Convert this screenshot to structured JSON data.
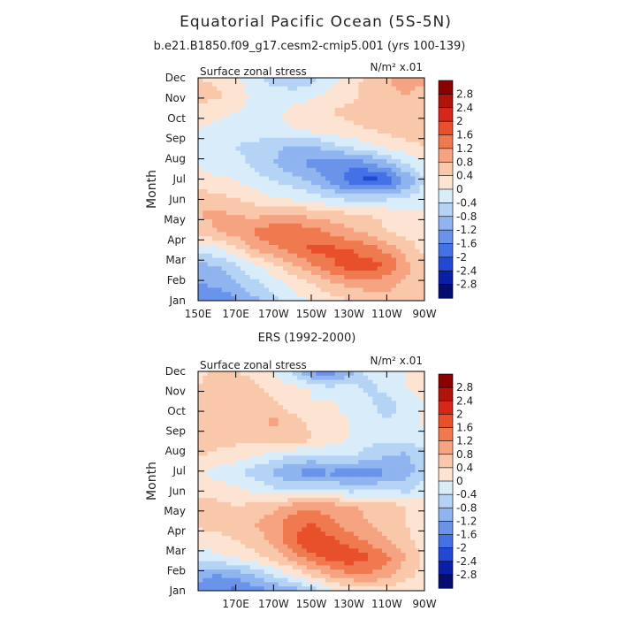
{
  "page": {
    "title": "Equatorial Pacific Ocean (5S-5N)",
    "subtitle": "b.e21.B1850.f09_g17.cesm2-cmip5.001 (yrs 100-139)"
  },
  "chart_data": [
    {
      "type": "heatmap",
      "title": "",
      "panel_label": "Surface zonal stress",
      "units": "N/m² x.01",
      "ylabel": "Month",
      "x_ticks": [
        "150E",
        "170E",
        "170W",
        "150W",
        "130W",
        "110W",
        "90W"
      ],
      "y_ticks": [
        "Jan",
        "Feb",
        "Mar",
        "Apr",
        "May",
        "Jun",
        "Jul",
        "Aug",
        "Sep",
        "Oct",
        "Nov",
        "Dec"
      ],
      "xlim": [
        "150E",
        "90W"
      ],
      "ylim": [
        "Jan",
        "Dec"
      ],
      "colorbar_levels": [
        "2.8",
        "2.4",
        "2",
        "1.6",
        "1.2",
        "0.8",
        "0.4",
        "0",
        "-0.4",
        "-0.8",
        "-1.2",
        "-1.6",
        "-2",
        "-2.4",
        "-2.8"
      ],
      "colors": [
        "#8b0000",
        "#b0130a",
        "#d5281b",
        "#e8502c",
        "#f07a50",
        "#f5a380",
        "#f9c8aa",
        "#fde4d2",
        "#d9ecfa",
        "#b5d3f5",
        "#8fb4ef",
        "#6a93ea",
        "#4472e6",
        "#2248d6",
        "#0a1fa8",
        "#050e6e"
      ],
      "grid": [
        [
          0.4,
          0.3,
          0.1,
          -0.3,
          -0.6,
          -0.8,
          -0.6,
          -0.2,
          0.2,
          0.5,
          0.8,
          0.9,
          0.9
        ],
        [
          0.6,
          0.5,
          0.2,
          -0.1,
          -0.2,
          -0.2,
          -0.1,
          0.1,
          0.3,
          0.5,
          0.7,
          0.8,
          0.7
        ],
        [
          0.2,
          0.1,
          0.0,
          -0.1,
          -0.1,
          0.1,
          0.3,
          0.4,
          0.5,
          0.6,
          0.7,
          0.8,
          0.7
        ],
        [
          0.0,
          -0.1,
          -0.2,
          -0.2,
          -0.1,
          0.0,
          0.1,
          0.2,
          0.3,
          0.4,
          0.5,
          0.6,
          0.5
        ],
        [
          -0.2,
          -0.3,
          -0.4,
          -0.5,
          -0.7,
          -0.9,
          -0.8,
          -0.6,
          -0.3,
          -0.1,
          0.1,
          0.3,
          0.4
        ],
        [
          -0.1,
          -0.2,
          -0.3,
          -0.5,
          -0.8,
          -1.1,
          -1.3,
          -1.4,
          -1.5,
          -1.3,
          -0.9,
          -0.4,
          -0.1
        ],
        [
          0.2,
          0.1,
          0.0,
          -0.2,
          -0.4,
          -0.6,
          -0.9,
          -1.3,
          -1.8,
          -2.2,
          -2.0,
          -1.2,
          -0.4
        ],
        [
          0.6,
          0.5,
          0.4,
          0.2,
          0.0,
          -0.1,
          -0.2,
          -0.4,
          -0.6,
          -0.6,
          -0.5,
          -0.4,
          -0.2
        ],
        [
          0.8,
          0.9,
          0.8,
          0.7,
          0.8,
          0.8,
          0.7,
          0.6,
          0.5,
          0.4,
          0.3,
          0.2,
          0.1
        ],
        [
          0.5,
          0.8,
          1.0,
          1.3,
          1.5,
          1.5,
          1.4,
          1.1,
          0.9,
          0.7,
          0.4,
          0.3,
          0.2
        ],
        [
          -0.3,
          -0.1,
          0.3,
          0.8,
          1.1,
          1.4,
          1.7,
          1.7,
          1.6,
          1.4,
          1.1,
          0.6,
          0.3
        ],
        [
          -1.0,
          -0.8,
          -0.5,
          -0.1,
          0.3,
          0.7,
          1.1,
          1.5,
          1.8,
          1.8,
          1.6,
          1.0,
          0.5
        ],
        [
          -1.2,
          -1.1,
          -0.9,
          -0.5,
          -0.2,
          0.1,
          0.4,
          0.7,
          0.9,
          1.0,
          0.9,
          0.7,
          0.4
        ],
        [
          -1.4,
          -1.6,
          -1.3,
          -0.9,
          -0.5,
          -0.2,
          0.0,
          0.2,
          0.4,
          0.6,
          0.7,
          0.7,
          0.5
        ]
      ]
    },
    {
      "type": "heatmap",
      "title": "ERS (1992-2000)",
      "panel_label": "Surface zonal stress",
      "units": "N/m² x.01",
      "ylabel": "Month",
      "x_ticks": [
        "170E",
        "170W",
        "150W",
        "130W",
        "110W",
        "90W"
      ],
      "y_ticks": [
        "Jan",
        "Feb",
        "Mar",
        "Apr",
        "May",
        "Jun",
        "Jul",
        "Aug",
        "Sep",
        "Oct",
        "Nov",
        "Dec"
      ],
      "xlim": [
        "150E",
        "90W"
      ],
      "ylim": [
        "Jan",
        "Dec"
      ],
      "colorbar_levels": [
        "2.8",
        "2.4",
        "2",
        "1.6",
        "1.2",
        "0.8",
        "0.4",
        "0",
        "-0.4",
        "-0.8",
        "-1.2",
        "-1.6",
        "-2",
        "-2.4",
        "-2.8"
      ],
      "colors": [
        "#8b0000",
        "#b0130a",
        "#d5281b",
        "#e8502c",
        "#f07a50",
        "#f5a380",
        "#f9c8aa",
        "#fde4d2",
        "#d9ecfa",
        "#b5d3f5",
        "#8fb4ef",
        "#6a93ea",
        "#4472e6",
        "#2248d6",
        "#0a1fa8",
        "#050e6e"
      ],
      "grid": [
        [
          0.3,
          0.5,
          0.4,
          0.2,
          0.0,
          -0.5,
          -1.3,
          -1.5,
          -1.0,
          -0.3,
          -0.2,
          0.0,
          0.1
        ],
        [
          0.4,
          0.6,
          0.8,
          0.5,
          0.3,
          0.1,
          0.0,
          -0.3,
          -0.2,
          -0.5,
          -0.3,
          0.0,
          0.2
        ],
        [
          0.5,
          0.7,
          0.6,
          0.4,
          0.5,
          0.2,
          0.0,
          0.1,
          -0.1,
          -0.3,
          -0.6,
          -0.3,
          0.0
        ],
        [
          0.6,
          0.8,
          0.7,
          0.5,
          0.9,
          0.6,
          0.3,
          0.1,
          0.0,
          -0.1,
          -0.4,
          -0.2,
          0.1
        ],
        [
          0.7,
          0.6,
          0.5,
          0.6,
          0.5,
          0.8,
          0.4,
          0.2,
          0.0,
          -0.2,
          -0.3,
          -0.2,
          -0.2
        ],
        [
          0.4,
          0.3,
          0.2,
          0.0,
          -0.2,
          -0.4,
          -0.5,
          -0.4,
          -0.3,
          -0.6,
          -0.8,
          -0.9,
          -0.6
        ],
        [
          0.1,
          -0.2,
          -0.3,
          -0.6,
          -0.9,
          -1.2,
          -1.4,
          -1.3,
          -1.4,
          -1.5,
          -1.2,
          -1.0,
          -0.5
        ],
        [
          0.3,
          0.2,
          0.1,
          -0.1,
          -0.3,
          -0.5,
          -0.3,
          -0.4,
          -0.6,
          -0.5,
          -0.4,
          -0.6,
          -0.2
        ],
        [
          0.6,
          0.5,
          0.4,
          0.5,
          0.7,
          1.0,
          1.1,
          1.0,
          0.9,
          0.7,
          0.6,
          0.4,
          0.3
        ],
        [
          0.5,
          0.5,
          0.7,
          0.8,
          1.0,
          1.4,
          1.6,
          1.3,
          1.0,
          0.8,
          0.5,
          0.4,
          0.2
        ],
        [
          0.2,
          0.3,
          0.4,
          0.6,
          0.9,
          1.5,
          2.0,
          1.7,
          1.4,
          1.1,
          0.8,
          0.5,
          0.2
        ],
        [
          -0.3,
          -0.1,
          0.1,
          0.3,
          0.6,
          1.0,
          1.5,
          1.8,
          1.9,
          1.7,
          1.3,
          0.8,
          0.3
        ],
        [
          -1.0,
          -1.2,
          -1.0,
          -0.7,
          -0.3,
          0.1,
          0.5,
          0.9,
          1.2,
          1.2,
          1.0,
          0.6,
          0.2
        ],
        [
          -1.3,
          -1.6,
          -1.7,
          -1.4,
          -1.2,
          -1.0,
          -0.6,
          -0.1,
          0.1,
          0.3,
          0.2,
          0.1,
          0.0
        ]
      ]
    }
  ]
}
